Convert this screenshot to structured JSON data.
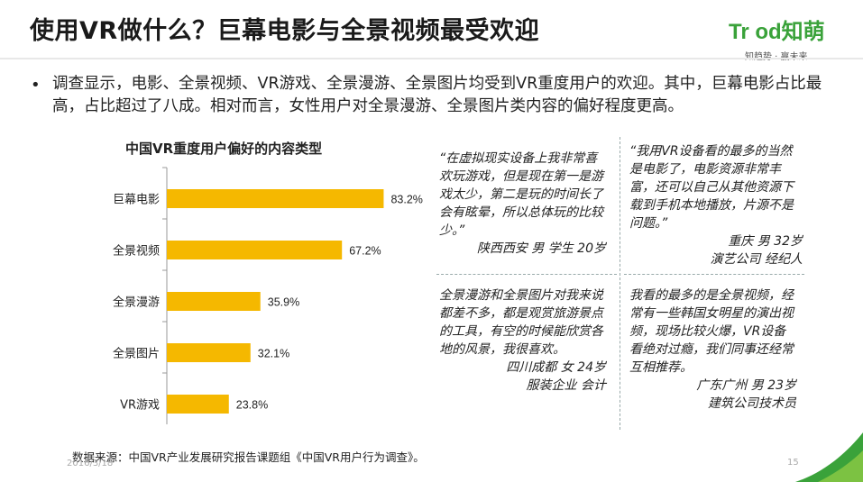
{
  "header": {
    "title": "使用VR做什么？巨幕电影与全景视频最受欢迎",
    "logo_mark": "Tr od知萌",
    "logo_sub": "知趋势 · 赢未来"
  },
  "summary": {
    "bullet": "•",
    "text": "调查显示，电影、全景视频、VR游戏、全景漫游、全景图片均受到VR重度用户的欢迎。其中，巨幕电影占比最高，占比超过了八成。相对而言，女性用户对全景漫游、全景图片类内容的偏好程度更高。"
  },
  "chart_data": {
    "type": "bar",
    "orientation": "horizontal",
    "title": "中国VR重度用户偏好的内容类型",
    "categories": [
      "巨幕电影",
      "全景视频",
      "全景漫游",
      "全景图片",
      "VR游戏"
    ],
    "values": [
      83.2,
      67.2,
      35.9,
      32.1,
      23.8
    ],
    "value_labels": [
      "83.2%",
      "67.2%",
      "35.9%",
      "32.1%",
      "23.8%"
    ],
    "xlim": [
      0,
      100
    ],
    "grid": false,
    "bar_color": "#f5b800"
  },
  "quotes": [
    {
      "text": "“在虚拟现实设备上我非常喜欢玩游戏，但是现在第一是游戏太少，第二是玩的时间长了会有眩晕，所以总体玩的比较少。”",
      "sig1": "陕西西安 男  学生  20岁",
      "sig2": ""
    },
    {
      "text": "“我用VR设备看的最多的当然是电影了，电影资源非常丰富，还可以自己从其他资源下载到手机本地播放，片源不是问题。”",
      "sig1": "重庆 男  32岁",
      "sig2": "演艺公司 经纪人"
    },
    {
      "text": "全景漫游和全景图片对我来说都差不多，都是观赏旅游景点的工具，有空的时候能欣赏各地的风景，我很喜欢。",
      "sig1": "四川成都  女  24岁",
      "sig2": "服装企业 会计"
    },
    {
      "text": "我看的最多的是全景视频，经常有一些韩国女明星的演出视频，现场比较火爆，VR设备看绝对过瘾，我们同事还经常互相推荐。",
      "sig1": "广东广州  男  23岁",
      "sig2": "建筑公司技术员"
    }
  ],
  "footer": {
    "source": "数据来源：中国VR产业发展研究报告课题组《中国VR用户行为调查》。",
    "date": "2016/3/18",
    "page": "15"
  },
  "colors": {
    "brand_green": "#3aa23a",
    "bar": "#f5b800"
  }
}
